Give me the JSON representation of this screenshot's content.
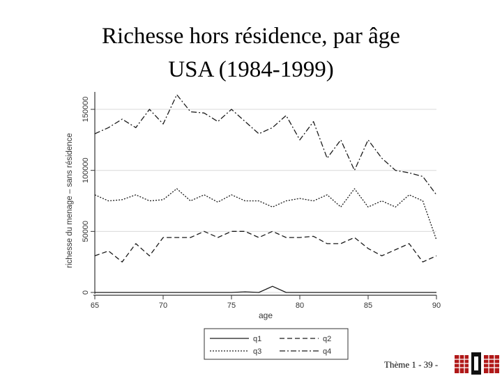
{
  "slide": {
    "title_line1": "Richesse hors résidence, par âge",
    "title_line2": "USA (1984-1999)",
    "footer": "Thème 1 - 39 -"
  },
  "colors": {
    "line": "#1a1a1a",
    "grid": "#d9d9d9",
    "axis": "#333333"
  },
  "logo": {
    "icon": "institution-logo-icon"
  },
  "chart_data": {
    "type": "line",
    "title": "",
    "xlabel": "age",
    "ylabel": "richesse du menage – sans résidence",
    "xlim": [
      65,
      90
    ],
    "ylim": [
      0,
      162000
    ],
    "xticks": [
      65,
      70,
      75,
      80,
      85,
      90
    ],
    "yticks": [
      0,
      50000,
      100000,
      150000
    ],
    "grid": "horizontal",
    "legend_position": "bottom",
    "x": [
      65,
      66,
      67,
      68,
      69,
      70,
      71,
      72,
      73,
      74,
      75,
      76,
      77,
      78,
      79,
      80,
      81,
      82,
      83,
      84,
      85,
      86,
      87,
      88,
      89,
      90
    ],
    "series": [
      {
        "name": "q1",
        "dash": "solid",
        "values": [
          0,
          0,
          0,
          0,
          0,
          0,
          0,
          0,
          0,
          0,
          0,
          500,
          0,
          5000,
          0,
          0,
          0,
          0,
          0,
          0,
          0,
          0,
          0,
          0,
          0,
          0
        ]
      },
      {
        "name": "q2",
        "dash": "dashed",
        "values": [
          30000,
          34000,
          25000,
          40000,
          30000,
          45000,
          45000,
          45000,
          50000,
          45000,
          50000,
          50000,
          45000,
          50000,
          45000,
          45000,
          46000,
          40000,
          40000,
          45000,
          36000,
          30000,
          35000,
          40000,
          25000,
          30000
        ]
      },
      {
        "name": "q3",
        "dash": "dotted",
        "values": [
          80000,
          75000,
          76000,
          80000,
          75000,
          76000,
          85000,
          75000,
          80000,
          74000,
          80000,
          75000,
          75000,
          70000,
          75000,
          77000,
          75000,
          80000,
          70000,
          85000,
          70000,
          75000,
          70000,
          80000,
          75000,
          43000
        ]
      },
      {
        "name": "q4",
        "dash": "dashdot",
        "values": [
          130000,
          135000,
          142000,
          135000,
          150000,
          138000,
          162000,
          148000,
          147000,
          140000,
          150000,
          140000,
          130000,
          135000,
          145000,
          125000,
          140000,
          110000,
          125000,
          100000,
          125000,
          110000,
          100000,
          98000,
          95000,
          80000
        ]
      }
    ]
  }
}
